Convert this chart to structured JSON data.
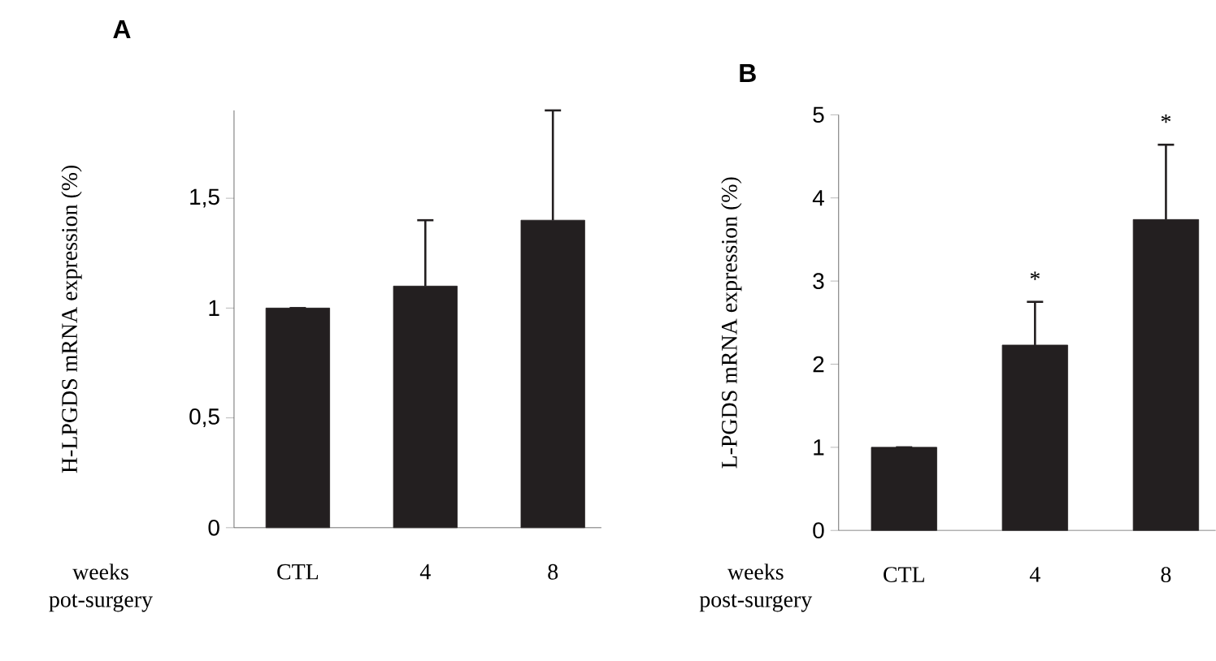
{
  "chart_data": [
    {
      "type": "bar",
      "title": "A",
      "ylabel": "H-LPGDS  mRNA expression (%)",
      "xlabel": "weeks pot-surgery",
      "categories": [
        "CTL",
        "4",
        "8"
      ],
      "values": [
        1.0,
        1.1,
        1.4
      ],
      "errors": [
        null,
        0.3,
        0.5
      ],
      "color": "#231f20",
      "ylim": [
        0,
        1.9
      ],
      "yticks": [
        0,
        {
          "value": 0.5,
          "label": "0,5"
        },
        1,
        {
          "value": 1.5,
          "label": "1,5"
        }
      ]
    },
    {
      "type": "bar",
      "title": "B",
      "ylabel": "L-PGDS  mRNA expression (%)",
      "xlabel": "weeks post-surgery",
      "categories": [
        "CTL",
        "4",
        "8"
      ],
      "values": [
        1.0,
        2.23,
        3.74
      ],
      "errors": [
        null,
        0.52,
        0.9
      ],
      "color": "#231f20",
      "ylim": [
        0,
        5
      ],
      "yticks": [
        0,
        1,
        2,
        3,
        4,
        5
      ],
      "annotations": [
        "*",
        "*"
      ]
    }
  ]
}
